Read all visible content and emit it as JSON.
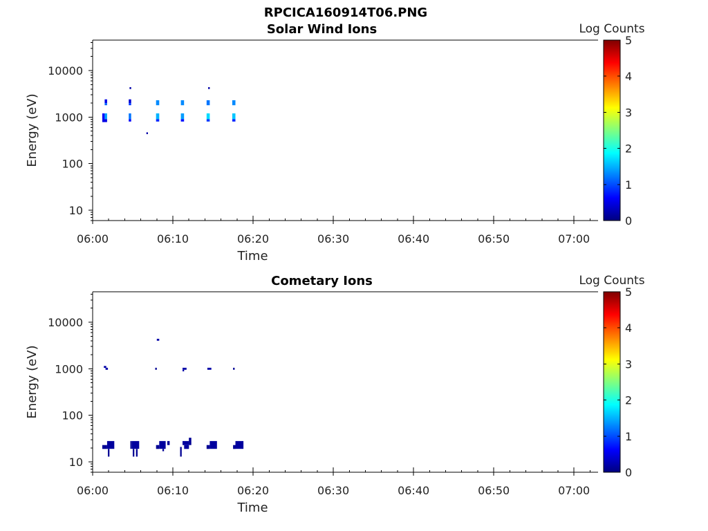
{
  "figure": {
    "title": "RPCICA160914T06.PNG"
  },
  "chart_data": [
    {
      "type": "heatmap",
      "title": "Solar Wind Ions",
      "xlabel": "Time",
      "ylabel": "Energy (eV)",
      "x_scale": "time",
      "y_scale": "log",
      "xlim": [
        "06:00",
        "07:03"
      ],
      "ylim": [
        6,
        45000
      ],
      "x_ticks": [
        "06:00",
        "06:10",
        "06:20",
        "06:30",
        "06:40",
        "06:50",
        "07:00"
      ],
      "y_ticks": [
        "10",
        "100",
        "1000",
        "10000"
      ],
      "colorbar": {
        "label": "Log Counts",
        "range": [
          0,
          5
        ],
        "ticks": [
          "0",
          "1",
          "2",
          "3",
          "4",
          "5"
        ],
        "colormap": "jet"
      },
      "cells": [
        {
          "t": "06:01.5",
          "t_end": "06:01.8",
          "e_lo": 2000,
          "e_hi": 2400,
          "v": 0.5
        },
        {
          "t": "06:01.5",
          "t_end": "06:01.8",
          "e_lo": 1800,
          "e_hi": 2000,
          "v": 1.1
        },
        {
          "t": "06:01.2",
          "t_end": "06:01.5",
          "e_lo": 900,
          "e_hi": 1200,
          "v": 0.6
        },
        {
          "t": "06:01.5",
          "t_end": "06:01.8",
          "e_lo": 900,
          "e_hi": 1200,
          "v": 1.4
        },
        {
          "t": "06:01.2",
          "t_end": "06:01.8",
          "e_lo": 780,
          "e_hi": 900,
          "v": 0.5
        },
        {
          "t": "06:04.5",
          "t_end": "06:04.8",
          "e_lo": 2000,
          "e_hi": 2400,
          "v": 0.4
        },
        {
          "t": "06:04.5",
          "t_end": "06:04.8",
          "e_lo": 1800,
          "e_hi": 2000,
          "v": 0.9
        },
        {
          "t": "06:04.5",
          "t_end": "06:04.8",
          "e_lo": 900,
          "e_hi": 1200,
          "v": 1.2
        },
        {
          "t": "06:04.5",
          "t_end": "06:04.8",
          "e_lo": 800,
          "e_hi": 900,
          "v": 0.6
        },
        {
          "t": "06:04.6",
          "t_end": "06:04.8",
          "e_lo": 4000,
          "e_hi": 4400,
          "v": 0.2
        },
        {
          "t": "06:06.7",
          "t_end": "06:06.9",
          "e_lo": 430,
          "e_hi": 470,
          "v": 0.2
        },
        {
          "t": "06:07.9",
          "t_end": "06:08.3",
          "e_lo": 1800,
          "e_hi": 2300,
          "v": 1.3
        },
        {
          "t": "06:07.9",
          "t_end": "06:08.3",
          "e_lo": 900,
          "e_hi": 1200,
          "v": 1.5
        },
        {
          "t": "06:07.9",
          "t_end": "06:08.3",
          "e_lo": 800,
          "e_hi": 900,
          "v": 0.8
        },
        {
          "t": "06:11.0",
          "t_end": "06:11.4",
          "e_lo": 1800,
          "e_hi": 2300,
          "v": 1.3
        },
        {
          "t": "06:11.0",
          "t_end": "06:11.4",
          "e_lo": 900,
          "e_hi": 1200,
          "v": 1.4
        },
        {
          "t": "06:11.0",
          "t_end": "06:11.4",
          "e_lo": 800,
          "e_hi": 900,
          "v": 0.7
        },
        {
          "t": "06:14.2",
          "t_end": "06:14.6",
          "e_lo": 1800,
          "e_hi": 2300,
          "v": 1.2
        },
        {
          "t": "06:14.2",
          "t_end": "06:14.6",
          "e_lo": 900,
          "e_hi": 1200,
          "v": 1.7
        },
        {
          "t": "06:14.2",
          "t_end": "06:14.6",
          "e_lo": 800,
          "e_hi": 900,
          "v": 0.9
        },
        {
          "t": "06:14.4",
          "t_end": "06:14.6",
          "e_lo": 4000,
          "e_hi": 4400,
          "v": 0.2
        },
        {
          "t": "06:17.4",
          "t_end": "06:17.8",
          "e_lo": 1800,
          "e_hi": 2300,
          "v": 1.3
        },
        {
          "t": "06:17.4",
          "t_end": "06:17.8",
          "e_lo": 900,
          "e_hi": 1200,
          "v": 1.6
        },
        {
          "t": "06:17.4",
          "t_end": "06:17.8",
          "e_lo": 800,
          "e_hi": 900,
          "v": 0.8
        }
      ]
    },
    {
      "type": "heatmap",
      "title": "Cometary Ions",
      "xlabel": "Time",
      "ylabel": "Energy (eV)",
      "x_scale": "time",
      "y_scale": "log",
      "xlim": [
        "06:00",
        "07:03"
      ],
      "ylim": [
        6,
        45000
      ],
      "x_ticks": [
        "06:00",
        "06:10",
        "06:20",
        "06:30",
        "06:40",
        "06:50",
        "07:00"
      ],
      "y_ticks": [
        "10",
        "100",
        "1000",
        "10000"
      ],
      "colorbar": {
        "label": "Log Counts",
        "range": [
          0,
          5
        ],
        "ticks": [
          "0",
          "1",
          "2",
          "3",
          "4",
          "5"
        ],
        "colormap": "jet"
      },
      "cells": [
        {
          "t": "06:01.4",
          "t_end": "06:01.7",
          "e_lo": 1050,
          "e_hi": 1150,
          "v": 0.2
        },
        {
          "t": "06:01.6",
          "t_end": "06:01.9",
          "e_lo": 950,
          "e_hi": 1050,
          "v": 0.2
        },
        {
          "t": "06:08.0",
          "t_end": "06:08.3",
          "e_lo": 4000,
          "e_hi": 4400,
          "v": 0.2
        },
        {
          "t": "06:07.8",
          "t_end": "06:08.0",
          "e_lo": 950,
          "e_hi": 1050,
          "v": 0.1
        },
        {
          "t": "06:11.2",
          "t_end": "06:11.7",
          "e_lo": 950,
          "e_hi": 1050,
          "v": 0.2
        },
        {
          "t": "06:11.2",
          "t_end": "06:11.4",
          "e_lo": 880,
          "e_hi": 950,
          "v": 0.2
        },
        {
          "t": "06:14.3",
          "t_end": "06:14.8",
          "e_lo": 950,
          "e_hi": 1050,
          "v": 0.2
        },
        {
          "t": "06:17.5",
          "t_end": "06:17.7",
          "e_lo": 950,
          "e_hi": 1050,
          "v": 0.1
        },
        {
          "t": "06:01.2",
          "t_end": "06:01.8",
          "e_lo": 19,
          "e_hi": 23,
          "v": 0.1
        },
        {
          "t": "06:01.8",
          "t_end": "06:02.7",
          "e_lo": 19,
          "e_hi": 28,
          "v": 0.15
        },
        {
          "t": "06:01.9",
          "t_end": "06:02.1",
          "e_lo": 13,
          "e_hi": 19,
          "v": 0.1
        },
        {
          "t": "06:04.7",
          "t_end": "06:04.9",
          "e_lo": 19,
          "e_hi": 28,
          "v": 0.1
        },
        {
          "t": "06:04.9",
          "t_end": "06:05.8",
          "e_lo": 19,
          "e_hi": 28,
          "v": 0.15
        },
        {
          "t": "06:05.0",
          "t_end": "06:05.2",
          "e_lo": 13,
          "e_hi": 19,
          "v": 0.1
        },
        {
          "t": "06:05.4",
          "t_end": "06:05.6",
          "e_lo": 13,
          "e_hi": 19,
          "v": 0.1
        },
        {
          "t": "06:07.9",
          "t_end": "06:08.3",
          "e_lo": 19,
          "e_hi": 23,
          "v": 0.1
        },
        {
          "t": "06:08.3",
          "t_end": "06:09.1",
          "e_lo": 19,
          "e_hi": 28,
          "v": 0.15
        },
        {
          "t": "06:08.7",
          "t_end": "06:08.9",
          "e_lo": 17,
          "e_hi": 19,
          "v": 0.1
        },
        {
          "t": "06:09.3",
          "t_end": "06:09.6",
          "e_lo": 23,
          "e_hi": 28,
          "v": 0.1
        },
        {
          "t": "06:10.9",
          "t_end": "06:11.1",
          "e_lo": 13,
          "e_hi": 21,
          "v": 0.1
        },
        {
          "t": "06:11.2",
          "t_end": "06:12.0",
          "e_lo": 23,
          "e_hi": 28,
          "v": 0.15
        },
        {
          "t": "06:11.4",
          "t_end": "06:12.0",
          "e_lo": 19,
          "e_hi": 23,
          "v": 0.15
        },
        {
          "t": "06:12.0",
          "t_end": "06:12.3",
          "e_lo": 23,
          "e_hi": 33,
          "v": 0.1
        },
        {
          "t": "06:14.2",
          "t_end": "06:14.6",
          "e_lo": 19,
          "e_hi": 23,
          "v": 0.1
        },
        {
          "t": "06:14.6",
          "t_end": "06:15.5",
          "e_lo": 19,
          "e_hi": 28,
          "v": 0.15
        },
        {
          "t": "06:17.5",
          "t_end": "06:17.8",
          "e_lo": 19,
          "e_hi": 23,
          "v": 0.1
        },
        {
          "t": "06:17.8",
          "t_end": "06:18.8",
          "e_lo": 19,
          "e_hi": 28,
          "v": 0.15
        }
      ]
    }
  ]
}
